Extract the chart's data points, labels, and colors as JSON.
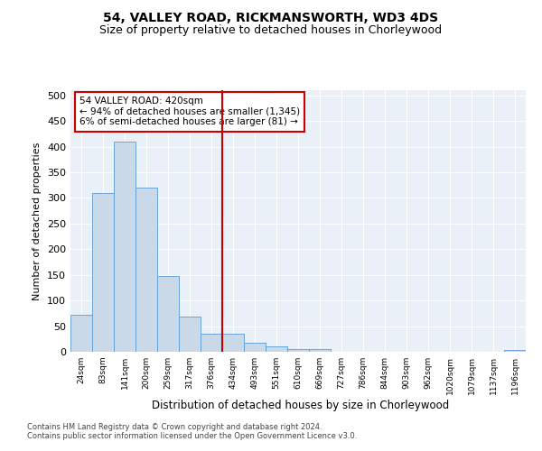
{
  "title": "54, VALLEY ROAD, RICKMANSWORTH, WD3 4DS",
  "subtitle": "Size of property relative to detached houses in Chorleywood",
  "xlabel": "Distribution of detached houses by size in Chorleywood",
  "ylabel": "Number of detached properties",
  "bin_labels": [
    "24sqm",
    "83sqm",
    "141sqm",
    "200sqm",
    "259sqm",
    "317sqm",
    "376sqm",
    "434sqm",
    "493sqm",
    "551sqm",
    "610sqm",
    "669sqm",
    "727sqm",
    "786sqm",
    "844sqm",
    "903sqm",
    "962sqm",
    "1020sqm",
    "1079sqm",
    "1137sqm",
    "1196sqm"
  ],
  "bar_values": [
    72,
    310,
    410,
    320,
    147,
    68,
    36,
    36,
    18,
    10,
    6,
    5,
    0,
    0,
    0,
    0,
    0,
    0,
    0,
    0,
    4
  ],
  "bar_color": "#c9d9e8",
  "bar_edge_color": "#5b9bd5",
  "vline_x_index": 7,
  "vline_color": "#cc0000",
  "annotation_text": "54 VALLEY ROAD: 420sqm\n← 94% of detached houses are smaller (1,345)\n6% of semi-detached houses are larger (81) →",
  "annotation_box_color": "#ffffff",
  "annotation_box_edge_color": "#cc0000",
  "ylim": [
    0,
    510
  ],
  "yticks": [
    0,
    50,
    100,
    150,
    200,
    250,
    300,
    350,
    400,
    450,
    500
  ],
  "bg_color": "#eaf0f8",
  "footer1": "Contains HM Land Registry data © Crown copyright and database right 2024.",
  "footer2": "Contains public sector information licensed under the Open Government Licence v3.0.",
  "title_fontsize": 10,
  "subtitle_fontsize": 9
}
